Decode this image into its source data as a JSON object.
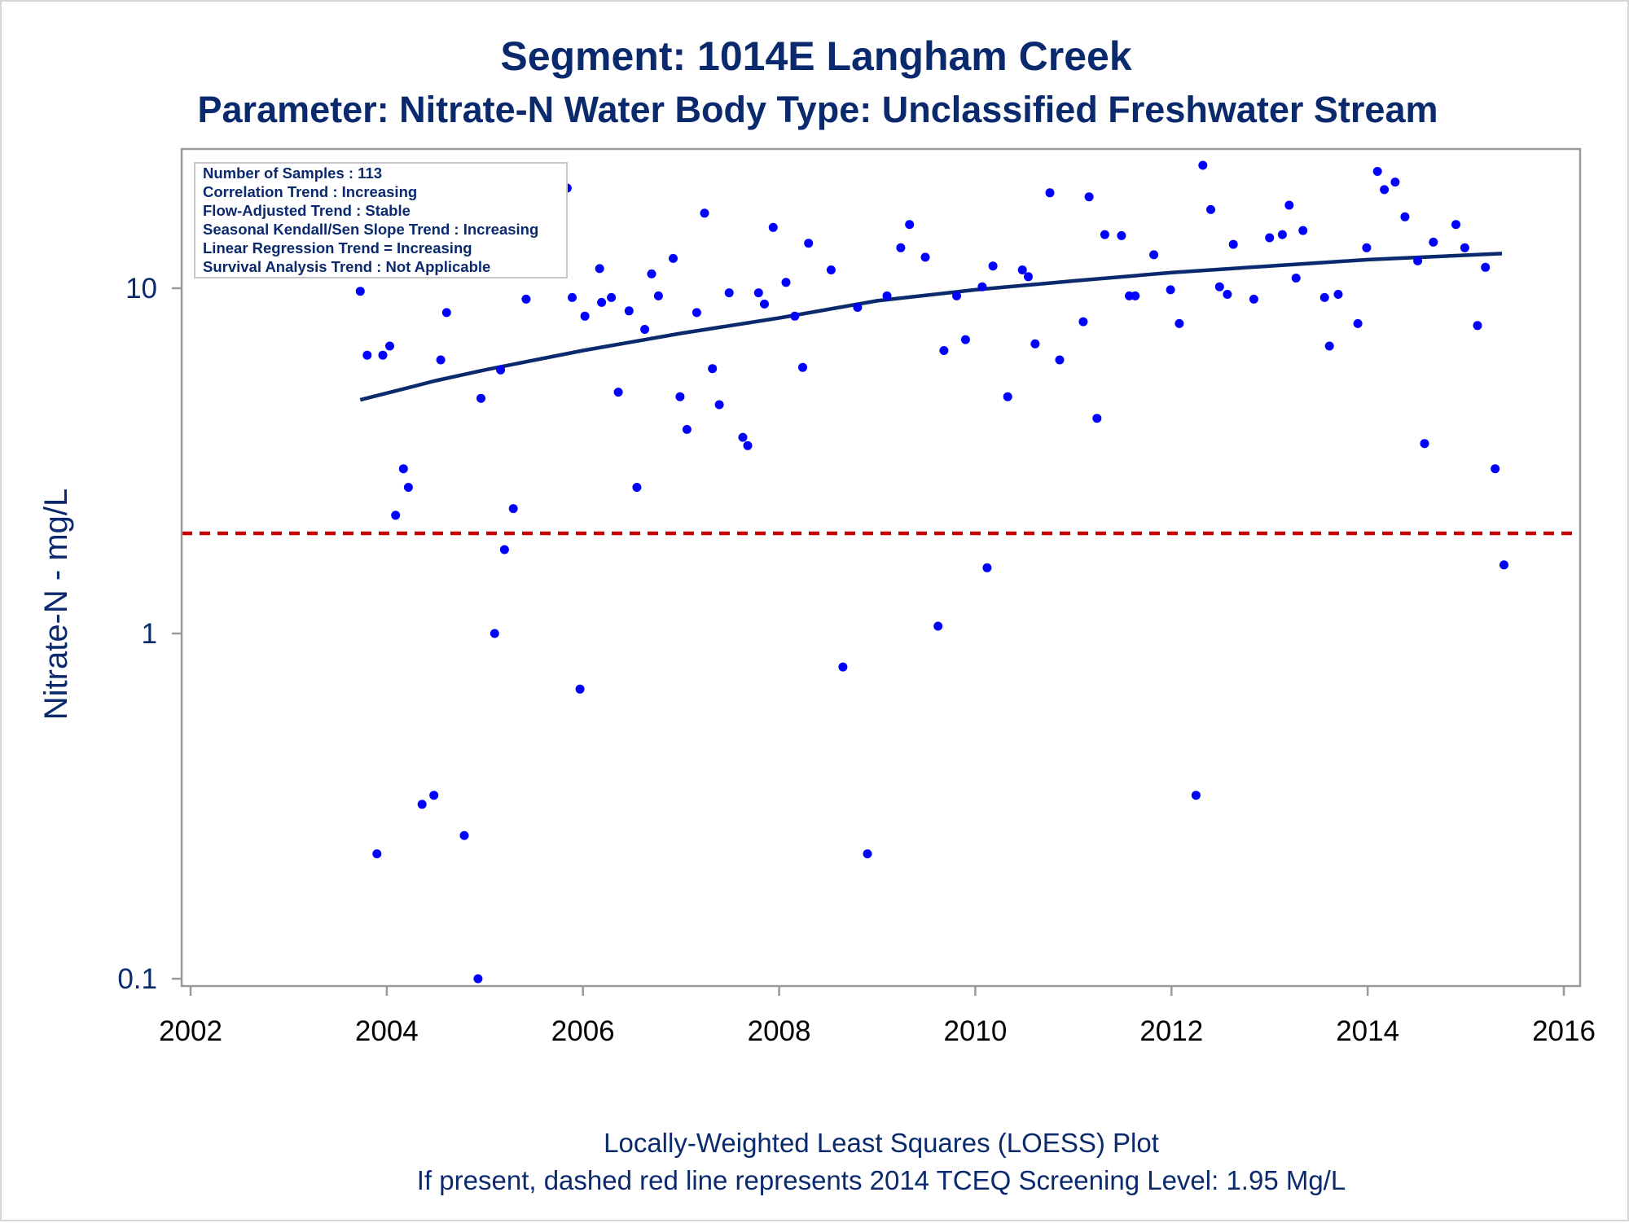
{
  "title": "Segment: 1014E  Langham Creek",
  "subtitle": "Parameter: Nitrate-N   Water Body Type: Unclassified Freshwater Stream",
  "footnotes": [
    "Locally-Weighted Least Squares (LOESS) Plot",
    "If present, dashed red line represents 2014 TCEQ Screening Level: 1.95 Mg/L"
  ],
  "inset_lines": [
    "Number of Samples : 113",
    "Correlation Trend : Increasing",
    "Flow-Adjusted Trend : Stable",
    "Seasonal Kendall/Sen Slope Trend : Increasing",
    "Linear Regression Trend = Increasing",
    "Survival Analysis Trend : Not Applicable"
  ],
  "colors": {
    "points": "#0000ff",
    "loess_line": "#0b2a6e",
    "screening_line": "#cc0000",
    "text": "#0b2a6e"
  },
  "chart_data": {
    "type": "scatter",
    "title": "Segment: 1014E  Langham Creek",
    "subtitle": "Parameter: Nitrate-N   Water Body Type: Unclassified Freshwater Stream",
    "xlabel": "",
    "ylabel": "Nitrate-N - mg/L",
    "xlim": [
      2002,
      2016
    ],
    "x_ticks": [
      2002,
      2004,
      2006,
      2008,
      2010,
      2012,
      2014,
      2016
    ],
    "x_tick_labels": [
      "2002",
      "2004",
      "2006",
      "2008",
      "2010",
      "2012",
      "2014",
      "2016"
    ],
    "ylim": [
      0.1,
      25
    ],
    "yscale": "log",
    "y_ticks": [
      0.1,
      1,
      10
    ],
    "y_tick_labels": [
      "0.1",
      "1",
      "10"
    ],
    "grid": false,
    "screening_level": 1.95,
    "series": [
      {
        "kind": "points",
        "points": [
          [
            2003.73,
            9.8
          ],
          [
            2003.8,
            6.4
          ],
          [
            2003.9,
            0.23
          ],
          [
            2003.96,
            6.4
          ],
          [
            2004.03,
            6.8
          ],
          [
            2004.09,
            2.2
          ],
          [
            2004.17,
            3.0
          ],
          [
            2004.22,
            2.65
          ],
          [
            2004.36,
            0.32
          ],
          [
            2004.48,
            0.34
          ],
          [
            2004.55,
            6.2
          ],
          [
            2004.61,
            8.5
          ],
          [
            2004.75,
            12.1
          ],
          [
            2004.79,
            0.26
          ],
          [
            2004.93,
            0.1
          ],
          [
            2004.96,
            4.8
          ],
          [
            2005.1,
            1.0
          ],
          [
            2005.16,
            5.8
          ],
          [
            2005.2,
            1.75
          ],
          [
            2005.29,
            2.3
          ],
          [
            2005.42,
            9.3
          ],
          [
            2005.74,
            11.1
          ],
          [
            2005.84,
            19.5
          ],
          [
            2005.89,
            9.4
          ],
          [
            2005.97,
            0.69
          ],
          [
            2006.02,
            8.3
          ],
          [
            2006.17,
            11.4
          ],
          [
            2006.19,
            9.1
          ],
          [
            2006.29,
            9.4
          ],
          [
            2006.36,
            5.0
          ],
          [
            2006.47,
            8.6
          ],
          [
            2006.55,
            2.65
          ],
          [
            2006.63,
            7.6
          ],
          [
            2006.7,
            11.0
          ],
          [
            2006.77,
            9.5
          ],
          [
            2006.92,
            12.2
          ],
          [
            2006.99,
            4.85
          ],
          [
            2007.06,
            3.9
          ],
          [
            2007.16,
            8.5
          ],
          [
            2007.24,
            16.5
          ],
          [
            2007.32,
            5.85
          ],
          [
            2007.39,
            4.6
          ],
          [
            2007.49,
            9.7
          ],
          [
            2007.63,
            3.7
          ],
          [
            2007.68,
            3.5
          ],
          [
            2007.79,
            9.7
          ],
          [
            2007.85,
            9.0
          ],
          [
            2007.94,
            15.0
          ],
          [
            2008.07,
            10.4
          ],
          [
            2008.16,
            8.3
          ],
          [
            2008.24,
            5.9
          ],
          [
            2008.3,
            13.5
          ],
          [
            2008.53,
            11.3
          ],
          [
            2008.65,
            0.8
          ],
          [
            2008.8,
            8.8
          ],
          [
            2008.9,
            0.23
          ],
          [
            2009.1,
            9.5
          ],
          [
            2009.24,
            13.1
          ],
          [
            2009.33,
            15.3
          ],
          [
            2009.49,
            12.3
          ],
          [
            2009.62,
            1.05
          ],
          [
            2009.68,
            6.6
          ],
          [
            2009.81,
            9.5
          ],
          [
            2009.9,
            7.1
          ],
          [
            2010.07,
            10.1
          ],
          [
            2010.12,
            1.55
          ],
          [
            2010.18,
            11.6
          ],
          [
            2010.33,
            4.85
          ],
          [
            2010.48,
            11.3
          ],
          [
            2010.54,
            10.8
          ],
          [
            2010.61,
            6.9
          ],
          [
            2010.76,
            18.9
          ],
          [
            2010.86,
            6.2
          ],
          [
            2011.1,
            8.0
          ],
          [
            2011.16,
            18.4
          ],
          [
            2011.24,
            4.2
          ],
          [
            2011.32,
            14.3
          ],
          [
            2011.49,
            14.2
          ],
          [
            2011.57,
            9.5
          ],
          [
            2011.63,
            9.5
          ],
          [
            2011.82,
            12.5
          ],
          [
            2011.99,
            9.9
          ],
          [
            2012.08,
            7.9
          ],
          [
            2012.25,
            0.34
          ],
          [
            2012.32,
            22.7
          ],
          [
            2012.4,
            16.9
          ],
          [
            2012.49,
            10.1
          ],
          [
            2012.57,
            9.6
          ],
          [
            2012.63,
            13.4
          ],
          [
            2012.84,
            9.3
          ],
          [
            2013.0,
            14.0
          ],
          [
            2013.13,
            14.3
          ],
          [
            2013.2,
            17.4
          ],
          [
            2013.27,
            10.7
          ],
          [
            2013.34,
            14.7
          ],
          [
            2013.56,
            9.4
          ],
          [
            2013.61,
            6.8
          ],
          [
            2013.7,
            9.6
          ],
          [
            2013.9,
            7.9
          ],
          [
            2013.99,
            13.1
          ],
          [
            2014.1,
            21.8
          ],
          [
            2014.17,
            19.3
          ],
          [
            2014.28,
            20.3
          ],
          [
            2014.38,
            16.1
          ],
          [
            2014.51,
            12.0
          ],
          [
            2014.58,
            3.55
          ],
          [
            2014.67,
            13.6
          ],
          [
            2014.9,
            15.3
          ],
          [
            2014.99,
            13.1
          ],
          [
            2015.12,
            7.8
          ],
          [
            2015.2,
            11.5
          ],
          [
            2015.3,
            3.0
          ],
          [
            2015.39,
            1.58
          ]
        ]
      },
      {
        "kind": "loess",
        "points": [
          [
            2003.73,
            4.75
          ],
          [
            2004.5,
            5.4
          ],
          [
            2005.0,
            5.8
          ],
          [
            2006.0,
            6.6
          ],
          [
            2007.0,
            7.4
          ],
          [
            2008.0,
            8.2
          ],
          [
            2009.0,
            9.2
          ],
          [
            2010.0,
            9.9
          ],
          [
            2011.0,
            10.5
          ],
          [
            2012.0,
            11.1
          ],
          [
            2013.0,
            11.6
          ],
          [
            2014.0,
            12.1
          ],
          [
            2015.37,
            12.6
          ]
        ]
      }
    ]
  }
}
